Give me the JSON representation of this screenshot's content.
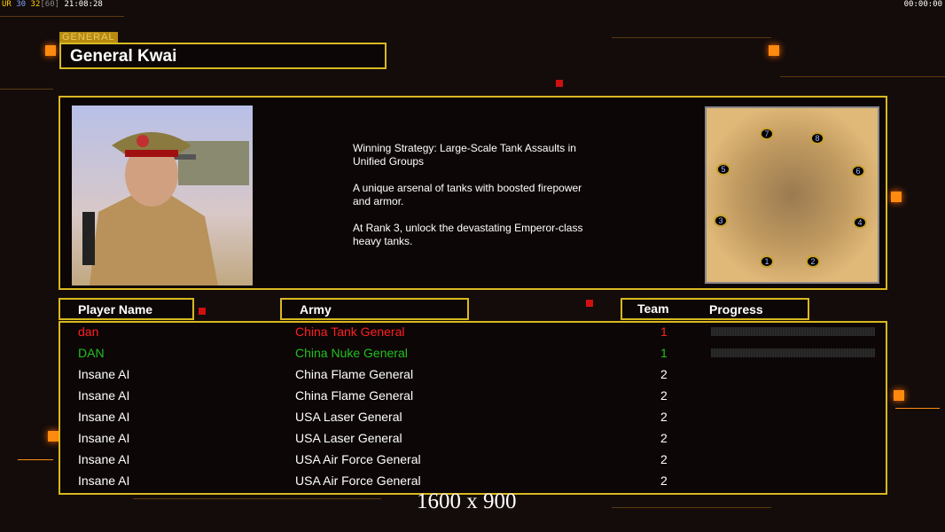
{
  "hud": {
    "ur": "UR",
    "a": "30",
    "b": "32",
    "c": "[60]",
    "time": "21:08:28",
    "clock": "00:00:00"
  },
  "general": {
    "tag": "GENERAL",
    "name": "General Kwai",
    "description": [
      "Winning Strategy: Large-Scale Tank Assaults in\n Unified Groups",
      "A unique arsenal of tanks with boosted firepower\n and armor.",
      "At Rank 3, unlock the devastating Emperor-class\n heavy tanks."
    ]
  },
  "map": {
    "spots": [
      "7",
      "8",
      "5",
      "6",
      "3",
      "4",
      "1",
      "2"
    ]
  },
  "headers": {
    "player": "Player Name",
    "army": "Army",
    "team": "Team",
    "progress": "Progress"
  },
  "players": [
    {
      "name": "dan",
      "army": "China Tank General",
      "team": "1",
      "color": "#ff2020",
      "progress": 0
    },
    {
      "name": "DAN",
      "army": "China Nuke General",
      "team": "1",
      "color": "#20c020",
      "progress": 0
    },
    {
      "name": "Insane AI",
      "army": "China Flame General",
      "team": "2",
      "color": "#ffffff"
    },
    {
      "name": "Insane AI",
      "army": "China Flame General",
      "team": "2",
      "color": "#ffffff"
    },
    {
      "name": "Insane AI",
      "army": "USA Laser General",
      "team": "2",
      "color": "#ffffff"
    },
    {
      "name": "Insane AI",
      "army": "USA Laser General",
      "team": "2",
      "color": "#ffffff"
    },
    {
      "name": "Insane AI",
      "army": "USA Air Force General",
      "team": "2",
      "color": "#ffffff"
    },
    {
      "name": "Insane AI",
      "army": "USA Air Force General",
      "team": "2",
      "color": "#ffffff"
    }
  ],
  "resolution": "1600 x 900"
}
